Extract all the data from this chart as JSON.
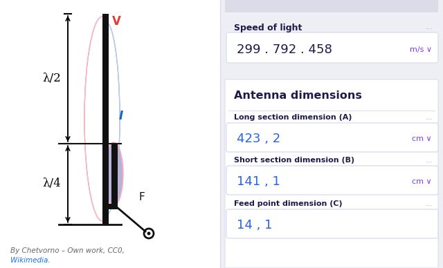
{
  "bg_color": "#eeeef5",
  "left_bg": "#ffffff",
  "colors": {
    "dark_text": "#1e1b4b",
    "blue_value": "#2563eb",
    "purple_unit": "#7c3aed",
    "purple_dots": "#a89fd8",
    "red": "#e53935",
    "blue_i": "#1565c0",
    "antenna_black": "#111111",
    "wikimedia_blue": "#1a73e8",
    "credit_gray": "#666666",
    "field_border": "#ddddf0",
    "section_bg": "#f0f0f8",
    "white": "#ffffff"
  },
  "left_panel": {
    "antenna_label_lambda2": "λ/2",
    "antenna_label_lambda4": "λ/4",
    "label_v": "V",
    "label_i": "I",
    "label_f": "F",
    "credit_line1": "By Chetvorno – Own work, CC0,",
    "credit_line2": "Wikimedia."
  },
  "right_panel": {
    "section1_title": "Speed of light",
    "section1_value": "299 . 792 . 458",
    "section1_unit": "m/s ∨",
    "section2_title": "Antenna dimensions",
    "field1_label": "Long section dimension (A)",
    "field1_value": "423 , 2",
    "field1_unit": "cm ∨",
    "field2_label": "Short section dimension (B)",
    "field2_value": "141 , 1",
    "field2_unit": "cm ∨",
    "field3_label": "Feed point dimension (C)",
    "field3_value": "14 , 1",
    "dots": "..."
  }
}
